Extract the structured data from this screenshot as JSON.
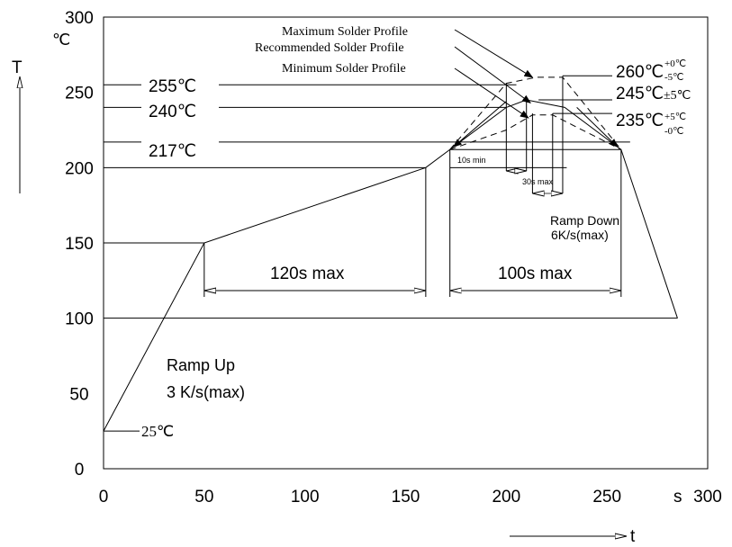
{
  "chart_data": {
    "type": "line",
    "xlabel": "t",
    "x_unit": "s",
    "ylabel": "T",
    "y_unit": "℃",
    "xlim": [
      0,
      300
    ],
    "ylim": [
      0,
      300
    ],
    "xticks": [
      0,
      50,
      100,
      150,
      200,
      250,
      300
    ],
    "yticks": [
      0,
      50,
      100,
      150,
      200,
      250,
      300
    ],
    "profile": {
      "x": [
        0,
        50,
        160,
        172,
        257,
        285
      ],
      "y": [
        25,
        150,
        200,
        212,
        212,
        100
      ]
    },
    "series": [
      {
        "name": "Maximum Solder Profile",
        "x": [
          172,
          200,
          215,
          228,
          257
        ],
        "y": [
          212,
          256,
          260,
          260,
          212
        ]
      },
      {
        "name": "Recommended Solder Profile",
        "x": [
          172,
          200,
          210,
          229,
          257
        ],
        "y": [
          212,
          240,
          245,
          240,
          212
        ]
      },
      {
        "name": "Minimum Solder Profile",
        "x": [
          172,
          200,
          213,
          223,
          257
        ],
        "y": [
          212,
          225,
          235,
          235,
          212
        ]
      }
    ],
    "levels": [
      {
        "value": 255,
        "label": "255℃"
      },
      {
        "value": 240,
        "label": "240℃"
      },
      {
        "value": 217,
        "label": "217℃"
      },
      {
        "value": 25,
        "label": "25℃"
      }
    ],
    "peak_labels": [
      {
        "value": "260℃",
        "tol_top": "+0℃",
        "tol_bottom": "-5℃"
      },
      {
        "value": "245℃",
        "tol": "±5℃"
      },
      {
        "value": "235℃",
        "tol_top": "+5℃",
        "tol_bottom": "-0℃"
      }
    ],
    "intervals": [
      {
        "label": "120s max",
        "x_start": 50,
        "x_end": 160
      },
      {
        "label": "100s max",
        "x_start": 172,
        "x_end": 257
      },
      {
        "label": "10s min"
      },
      {
        "label": "30s max"
      }
    ],
    "annotations": {
      "ramp_up_line1": "Ramp Up",
      "ramp_up_line2": "3 K/s(max)",
      "ramp_down_line1": "Ramp Down",
      "ramp_down_line2": "6K/s(max)"
    }
  }
}
